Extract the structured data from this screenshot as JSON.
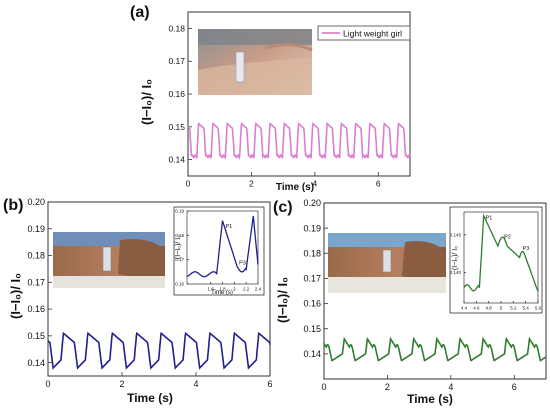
{
  "figure": {
    "panels": [
      {
        "id": "a",
        "label": "(a)",
        "ylabel": "(I−I₀)/ I₀",
        "xlabel": "Time (s)",
        "legend": "Light weight girl",
        "photo": "wrist-photo",
        "color": "#d97fd2"
      },
      {
        "id": "b",
        "label": "(b)",
        "ylabel": "(I−I₀)/ I₀",
        "xlabel": "Time (s)",
        "photo": "wrist-photo",
        "color": "#1f1f8f"
      },
      {
        "id": "c",
        "label": "(c)",
        "ylabel": "(I−I₀)/ I₀",
        "xlabel": "Time (s)",
        "photo": "wrist-photo",
        "color": "#2e7d2e"
      }
    ],
    "insets": [
      {
        "id": "b-inset",
        "ylabel": "(I−I₀)/ I₀",
        "xlabel": "Time (s)",
        "annotations": [
          "P1",
          "P3"
        ]
      },
      {
        "id": "c-inset",
        "ylabel": "(I−I₀)/ I₀",
        "annotations": [
          "P1",
          "P2",
          "P3"
        ]
      }
    ]
  },
  "chart_data": [
    {
      "id": "a",
      "type": "line",
      "title": "",
      "xlabel": "Time (s)",
      "ylabel": "(I−I₀)/ I₀",
      "xlim": [
        0,
        7
      ],
      "ylim": [
        0.135,
        0.185
      ],
      "xticks": [
        0,
        2,
        4,
        6
      ],
      "yticks": [
        0.14,
        0.15,
        0.16,
        0.17,
        0.18
      ],
      "ytick_labels": [
        "0.14",
        "0.15",
        "0.16",
        "0.17",
        "0.18"
      ],
      "series": [
        {
          "name": "Light weight girl",
          "period": 0.45,
          "t0": 0.28,
          "baseline": 0.141,
          "peak": 0.151,
          "x": [
            0,
            7
          ]
        }
      ],
      "legend_position": "top-right",
      "color": "#d97fd2"
    },
    {
      "id": "b",
      "type": "line",
      "title": "",
      "xlabel": "Time (s)",
      "ylabel": "(I−I₀)/ I₀",
      "xlim": [
        0,
        6
      ],
      "ylim": [
        0.135,
        0.2
      ],
      "xticks": [
        0,
        2,
        4,
        6
      ],
      "yticks": [
        0.14,
        0.15,
        0.16,
        0.17,
        0.18,
        0.19,
        0.2
      ],
      "ytick_labels": [
        "0.14",
        "0.15",
        "0.16",
        "0.17",
        "0.18",
        "0.19",
        "0.20"
      ],
      "series": [
        {
          "period": 0.66,
          "t0": 0.35,
          "baseline": 0.141,
          "peak": 0.151,
          "x": [
            0,
            6
          ]
        }
      ],
      "color": "#1f1f8f"
    },
    {
      "id": "b-inset",
      "type": "line",
      "xlabel": "Time (s)",
      "ylabel": "(I−I₀)/ I₀",
      "xlim": [
        1.2,
        2.4
      ],
      "ylim": [
        0.16,
        0.19
      ],
      "xticks": [
        1.6,
        1.8,
        2.0,
        2.2,
        2.4
      ],
      "yticks": [
        0.16,
        0.17,
        0.18,
        0.19
      ],
      "ytick_labels": [
        "0.16",
        "0.17",
        "0.18",
        "0.19"
      ],
      "annotations": [
        {
          "text": "P1",
          "x": 1.85,
          "y": 0.183
        },
        {
          "text": "P3",
          "x": 2.08,
          "y": 0.168
        }
      ],
      "color": "#1f1f8f"
    },
    {
      "id": "c",
      "type": "line",
      "title": "",
      "xlabel": "Time (s)",
      "ylabel": "(I−I₀)/ I₀",
      "xlim": [
        0,
        7
      ],
      "ylim": [
        0.13,
        0.2
      ],
      "xticks": [
        0,
        2,
        4,
        6
      ],
      "yticks": [
        0.14,
        0.15,
        0.16,
        0.17,
        0.18,
        0.19,
        0.2
      ],
      "ytick_labels": [
        "0.14",
        "0.15",
        "0.16",
        "0.17",
        "0.18",
        "0.19",
        "0.20"
      ],
      "series": [
        {
          "period": 0.73,
          "t0": 0.58,
          "baseline": 0.14,
          "peak": 0.146,
          "x": [
            0,
            7
          ]
        }
      ],
      "color": "#2e7d2e"
    },
    {
      "id": "c-inset",
      "type": "line",
      "xlabel": "",
      "ylabel": "(I−I₀)/ I₀",
      "xlim": [
        4.4,
        5.6
      ],
      "ylim": [
        0.136,
        0.148
      ],
      "xticks": [
        4.4,
        4.6,
        4.8,
        5.0,
        5.2,
        5.4,
        5.6
      ],
      "yticks": [
        0.14,
        0.145
      ],
      "ytick_labels": [
        "0.140",
        "0.145"
      ],
      "annotations": [
        {
          "text": "P1",
          "x": 4.75,
          "y": 0.147
        },
        {
          "text": "P2",
          "x": 5.05,
          "y": 0.1445
        },
        {
          "text": "P3",
          "x": 5.35,
          "y": 0.143
        }
      ],
      "color": "#2e7d2e"
    }
  ]
}
